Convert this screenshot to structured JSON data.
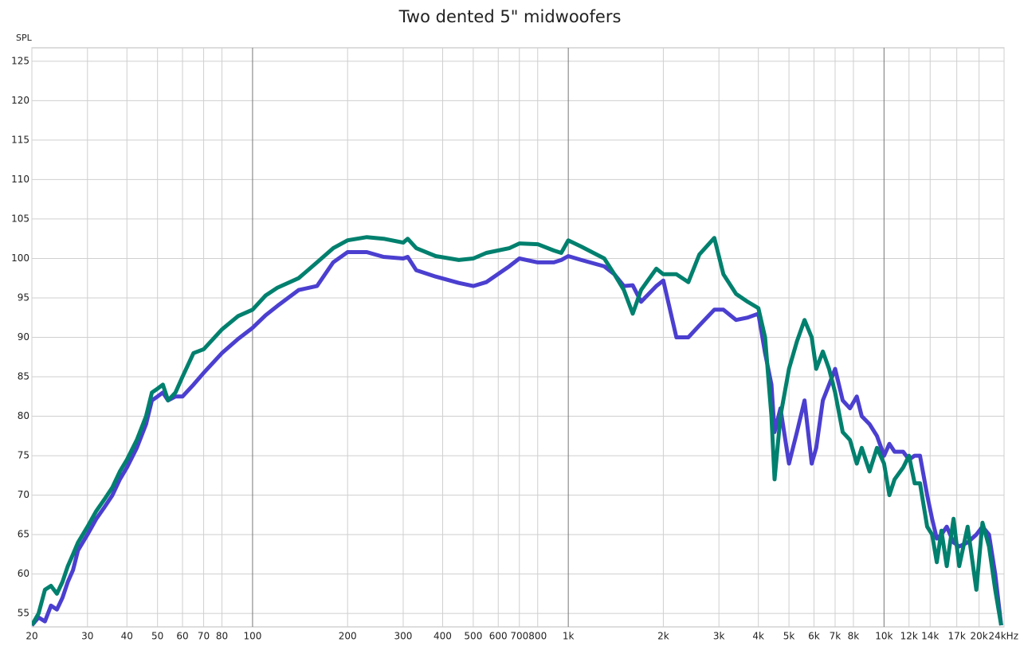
{
  "chart_data": {
    "type": "line",
    "title": "Two dented 5\" midwoofers",
    "y_label": "SPL",
    "log_x": true,
    "grid": true,
    "xlim": [
      20,
      24000
    ],
    "ylim": [
      53.3,
      126.7
    ],
    "yticks": [
      55,
      60,
      65,
      70,
      75,
      80,
      85,
      90,
      95,
      100,
      105,
      110,
      115,
      120,
      125
    ],
    "xticks": [
      20,
      30,
      40,
      50,
      60,
      70,
      80,
      100,
      200,
      300,
      400,
      500,
      600,
      700,
      800,
      {
        "value": 1000,
        "label": "1k"
      },
      {
        "value": 2000,
        "label": "2k"
      },
      {
        "value": 3000,
        "label": "3k"
      },
      {
        "value": 4000,
        "label": "4k"
      },
      {
        "value": 5000,
        "label": "5k"
      },
      {
        "value": 6000,
        "label": "6k"
      },
      {
        "value": 7000,
        "label": "7k"
      },
      {
        "value": 8000,
        "label": "8k"
      },
      {
        "value": 10000,
        "label": "10k"
      },
      {
        "value": 12000,
        "label": "12k"
      },
      {
        "value": 14000,
        "label": "14k"
      },
      {
        "value": 17000,
        "label": "17k"
      },
      {
        "value": 20000,
        "label": "20k"
      },
      {
        "value": 24000,
        "label": "24kHz"
      }
    ],
    "x": [
      20,
      21,
      22,
      23,
      24,
      25,
      26,
      27,
      28,
      30,
      32,
      34,
      36,
      38,
      40,
      43,
      46,
      48,
      50,
      52,
      54,
      57,
      60,
      65,
      70,
      80,
      90,
      100,
      110,
      120,
      140,
      160,
      180,
      200,
      230,
      260,
      300,
      310,
      330,
      380,
      450,
      500,
      550,
      650,
      700,
      800,
      900,
      950,
      1000,
      1100,
      1300,
      1400,
      1500,
      1600,
      1700,
      1900,
      2000,
      2200,
      2400,
      2600,
      2900,
      3100,
      3400,
      3700,
      4000,
      4200,
      4400,
      4500,
      4700,
      5000,
      5300,
      5600,
      5900,
      6100,
      6400,
      6700,
      7000,
      7400,
      7800,
      8200,
      8500,
      9000,
      9500,
      10000,
      10400,
      10800,
      11500,
      12000,
      12500,
      13000,
      13700,
      14200,
      14700,
      15200,
      15800,
      16600,
      17300,
      18400,
      19600,
      20500,
      21500,
      22500,
      23500
    ],
    "series": [
      {
        "color": "#4b3fd0",
        "values": [
          53.5,
          54.5,
          54,
          56,
          55.5,
          57,
          59,
          60.5,
          63,
          65,
          67,
          68.5,
          70,
          72,
          73.5,
          76,
          79,
          82,
          82.5,
          83,
          82,
          82.5,
          82.5,
          84,
          85.5,
          88,
          89.8,
          91.2,
          92.8,
          94,
          96,
          96.5,
          99.5,
          100.8,
          100.8,
          100.2,
          100,
          100.2,
          98.5,
          97.7,
          96.9,
          96.5,
          97,
          99,
          100,
          99.5,
          99.5,
          99.8,
          100.3,
          99.8,
          99,
          98,
          96.5,
          96.6,
          94.5,
          96.5,
          97.2,
          90,
          90,
          91.5,
          93.5,
          93.5,
          92.2,
          92.5,
          93,
          88,
          84,
          78,
          81,
          74,
          78,
          82,
          74,
          76,
          82,
          84,
          86,
          82,
          81,
          82.5,
          80,
          79,
          77.5,
          75,
          76.5,
          75.5,
          75.5,
          74.5,
          75,
          75,
          70,
          67,
          64.5,
          65,
          66,
          64,
          63.5,
          64,
          65,
          66,
          65,
          60,
          53.5
        ]
      },
      {
        "color": "#00806e",
        "values": [
          53.5,
          55,
          58,
          58.5,
          57.5,
          59,
          61,
          62.5,
          64,
          66,
          68,
          69.5,
          71,
          73,
          74.5,
          77,
          80,
          83,
          83.5,
          84,
          82,
          83,
          85,
          88,
          88.5,
          91,
          92.7,
          93.5,
          95.3,
          96.3,
          97.5,
          99.5,
          101.3,
          102.3,
          102.7,
          102.5,
          102,
          102.5,
          101.3,
          100.3,
          99.8,
          100,
          100.7,
          101.3,
          101.9,
          101.8,
          101,
          100.7,
          102.3,
          101.5,
          100,
          98,
          96,
          93,
          96,
          98.7,
          98,
          98,
          97,
          100.5,
          102.6,
          98,
          95.5,
          94.5,
          93.7,
          90,
          80,
          72,
          80,
          86,
          89.5,
          92.2,
          90,
          86,
          88.2,
          86,
          83,
          78,
          77,
          74,
          76,
          73,
          76,
          74,
          70,
          72,
          73.5,
          75,
          71.5,
          71.5,
          66,
          65,
          61.5,
          65.5,
          61,
          67,
          61,
          66,
          58,
          66.5,
          63.5,
          58,
          53.5
        ]
      }
    ]
  }
}
